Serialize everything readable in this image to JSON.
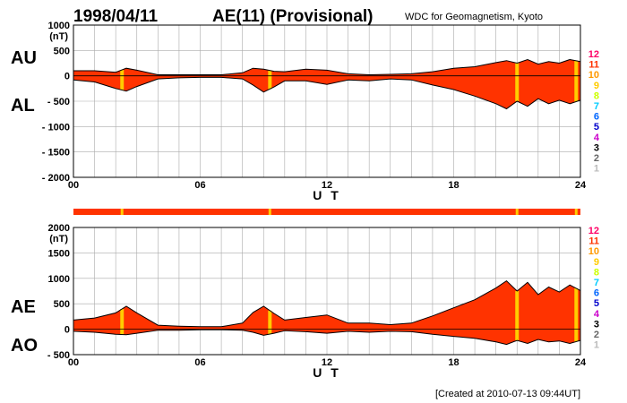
{
  "header": {
    "date": "1998/04/11",
    "title": "AE(11) (Provisional)",
    "source": "WDC for Geomagnetism, Kyoto"
  },
  "footer": {
    "created": "[Created at 2010-07-13 09:44UT]"
  },
  "colors": {
    "fill": "#ff3300",
    "highlight": "#ffcc00",
    "grid": "#aaaaaa",
    "outline": "#000000"
  },
  "color_scale": [
    {
      "label": "12",
      "color": "#ff0066"
    },
    {
      "label": "11",
      "color": "#ff3300"
    },
    {
      "label": "10",
      "color": "#ff9900"
    },
    {
      "label": "9",
      "color": "#ffcc00"
    },
    {
      "label": "8",
      "color": "#ccff00"
    },
    {
      "label": "7",
      "color": "#00ccff"
    },
    {
      "label": "6",
      "color": "#0066ff"
    },
    {
      "label": "5",
      "color": "#0000cc"
    },
    {
      "label": "4",
      "color": "#cc00cc"
    },
    {
      "label": "3",
      "color": "#000000"
    },
    {
      "label": "2",
      "color": "#666666"
    },
    {
      "label": "1",
      "color": "#bbbbbb"
    }
  ],
  "chart_data": [
    {
      "type": "area",
      "xlabel": "U T",
      "yunit": "(nT)",
      "xlim": [
        0,
        24
      ],
      "ylim": [
        -2000,
        1000
      ],
      "xticks": [
        "00",
        "06",
        "12",
        "18",
        "24"
      ],
      "yticks": [
        "1000",
        "500",
        "0",
        "- 500",
        "- 1000",
        "- 1500",
        "- 2000"
      ],
      "upper_label": "AU",
      "lower_label": "AL",
      "highlight_hours": [
        2.3,
        9.3,
        21.0,
        23.8
      ],
      "series": [
        {
          "name": "AU",
          "x": [
            0,
            1,
            2,
            2.5,
            3,
            4,
            5,
            6,
            7,
            8,
            8.5,
            9,
            9.5,
            10,
            11,
            12,
            13,
            14,
            15,
            16,
            17,
            18,
            19,
            20,
            20.5,
            21,
            21.5,
            22,
            22.5,
            23,
            23.5,
            24
          ],
          "y": [
            100,
            100,
            70,
            150,
            110,
            20,
            20,
            20,
            20,
            60,
            150,
            130,
            90,
            80,
            130,
            110,
            40,
            20,
            30,
            40,
            80,
            150,
            180,
            260,
            300,
            250,
            320,
            230,
            280,
            250,
            320,
            280
          ]
        },
        {
          "name": "AL",
          "x": [
            0,
            1,
            2,
            2.5,
            3,
            4,
            5,
            6,
            7,
            8,
            8.5,
            9,
            9.5,
            10,
            11,
            12,
            13,
            14,
            15,
            16,
            17,
            18,
            19,
            20,
            20.5,
            21,
            21.5,
            22,
            22.5,
            23,
            23.5,
            24
          ],
          "y": [
            -80,
            -120,
            -250,
            -300,
            -210,
            -60,
            -40,
            -30,
            -30,
            -60,
            -180,
            -320,
            -220,
            -100,
            -100,
            -170,
            -80,
            -100,
            -60,
            -80,
            -180,
            -270,
            -400,
            -550,
            -650,
            -500,
            -600,
            -450,
            -550,
            -480,
            -550,
            -480
          ]
        }
      ]
    },
    {
      "type": "area",
      "xlabel": "U T",
      "yunit": "(nT)",
      "xlim": [
        0,
        24
      ],
      "ylim": [
        -500,
        2000
      ],
      "xticks": [
        "00",
        "06",
        "12",
        "18",
        "24"
      ],
      "yticks": [
        "2000",
        "1500",
        "1000",
        "500",
        "0",
        "- 500"
      ],
      "upper_label": "AE",
      "lower_label": "AO",
      "highlight_hours": [
        2.3,
        9.3,
        21.0,
        23.8
      ],
      "series": [
        {
          "name": "AE",
          "x": [
            0,
            1,
            2,
            2.5,
            3,
            4,
            5,
            6,
            7,
            8,
            8.5,
            9,
            9.5,
            10,
            11,
            12,
            13,
            14,
            15,
            16,
            17,
            18,
            19,
            20,
            20.5,
            21,
            21.5,
            22,
            22.5,
            23,
            23.5,
            24
          ],
          "y": [
            180,
            220,
            320,
            450,
            320,
            80,
            60,
            50,
            50,
            120,
            330,
            450,
            310,
            180,
            230,
            280,
            120,
            120,
            90,
            120,
            260,
            420,
            580,
            810,
            950,
            750,
            920,
            680,
            830,
            730,
            870,
            760
          ]
        },
        {
          "name": "AO",
          "x": [
            0,
            1,
            2,
            2.5,
            3,
            4,
            5,
            6,
            7,
            8,
            8.5,
            9,
            9.5,
            10,
            11,
            12,
            13,
            14,
            15,
            16,
            17,
            18,
            19,
            20,
            20.5,
            21,
            21.5,
            22,
            22.5,
            23,
            23.5,
            24
          ],
          "y": [
            -40,
            -60,
            -100,
            -110,
            -80,
            -20,
            -20,
            -10,
            -10,
            -20,
            -60,
            -120,
            -80,
            -30,
            -50,
            -80,
            -40,
            -60,
            -40,
            -50,
            -100,
            -140,
            -180,
            -250,
            -300,
            -220,
            -280,
            -200,
            -250,
            -230,
            -280,
            -220
          ]
        }
      ]
    }
  ]
}
